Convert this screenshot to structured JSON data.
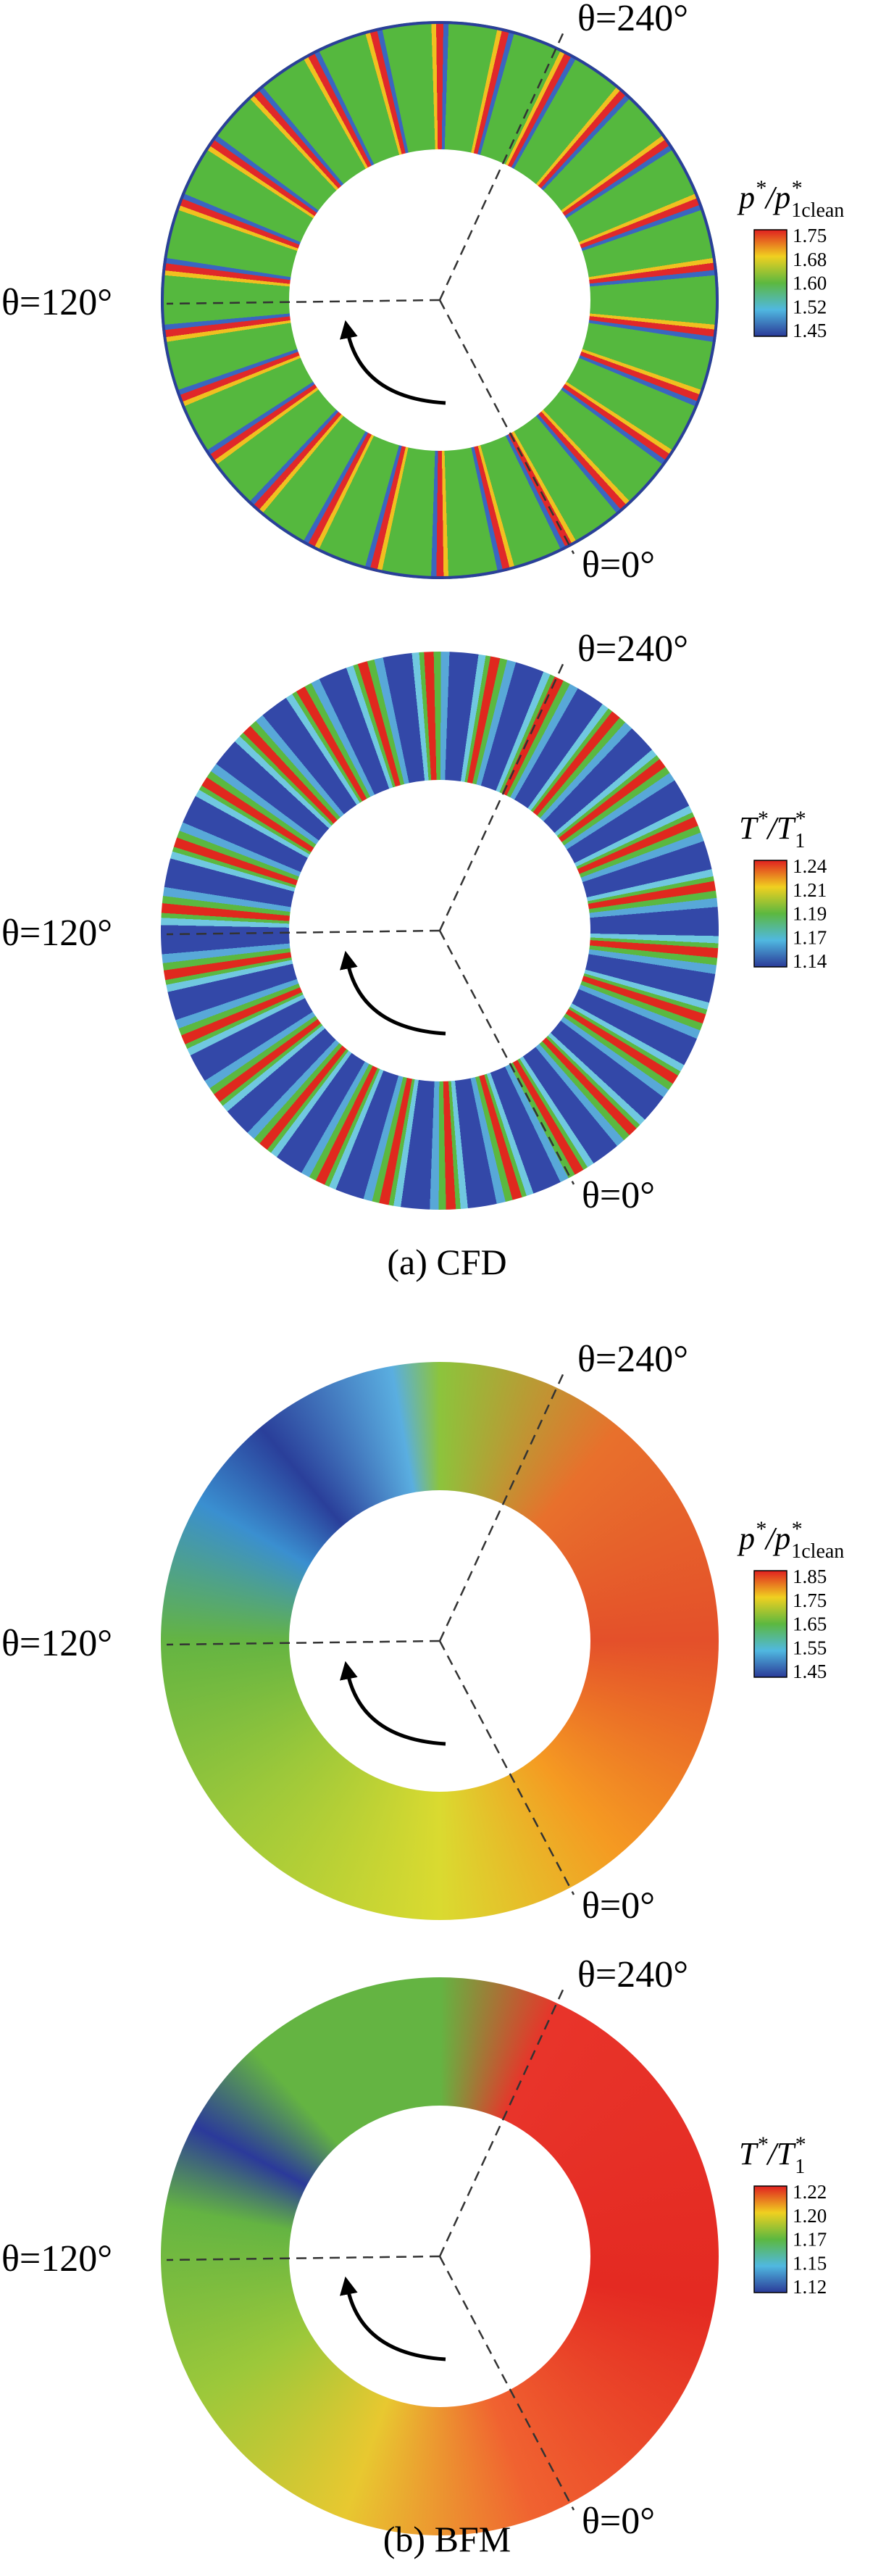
{
  "panels": [
    {
      "theta_labels": [
        "θ=240°",
        "θ=120°",
        "θ=0°"
      ],
      "colorbar": {
        "title": {
          "base": "p",
          "star": "*",
          "slash": "/p",
          "star2": "*",
          "sub": "1clean"
        },
        "ticks": [
          "1.75",
          "1.68",
          "1.60",
          "1.52",
          "1.45"
        ]
      }
    },
    {
      "theta_labels": [
        "θ=240°",
        "θ=120°",
        "θ=0°"
      ],
      "colorbar": {
        "title": {
          "base": "T",
          "star": "*",
          "slash": "/T",
          "star2": "*",
          "sub": "1"
        },
        "ticks": [
          "1.24",
          "1.21",
          "1.19",
          "1.17",
          "1.14"
        ]
      }
    },
    {
      "theta_labels": [
        "θ=240°",
        "θ=120°",
        "θ=0°"
      ],
      "colorbar": {
        "title": {
          "base": "p",
          "star": "*",
          "slash": "/p",
          "star2": "*",
          "sub": "1clean"
        },
        "ticks": [
          "1.85",
          "1.75",
          "1.65",
          "1.55",
          "1.45"
        ]
      }
    },
    {
      "theta_labels": [
        "θ=240°",
        "θ=120°",
        "θ=0°"
      ],
      "colorbar": {
        "title": {
          "base": "T",
          "star": "*",
          "slash": "/T",
          "star2": "*",
          "sub": "1"
        },
        "ticks": [
          "1.22",
          "1.20",
          "1.17",
          "1.15",
          "1.12"
        ]
      }
    }
  ],
  "captions": [
    "(a) CFD",
    "(b) BFM"
  ]
}
